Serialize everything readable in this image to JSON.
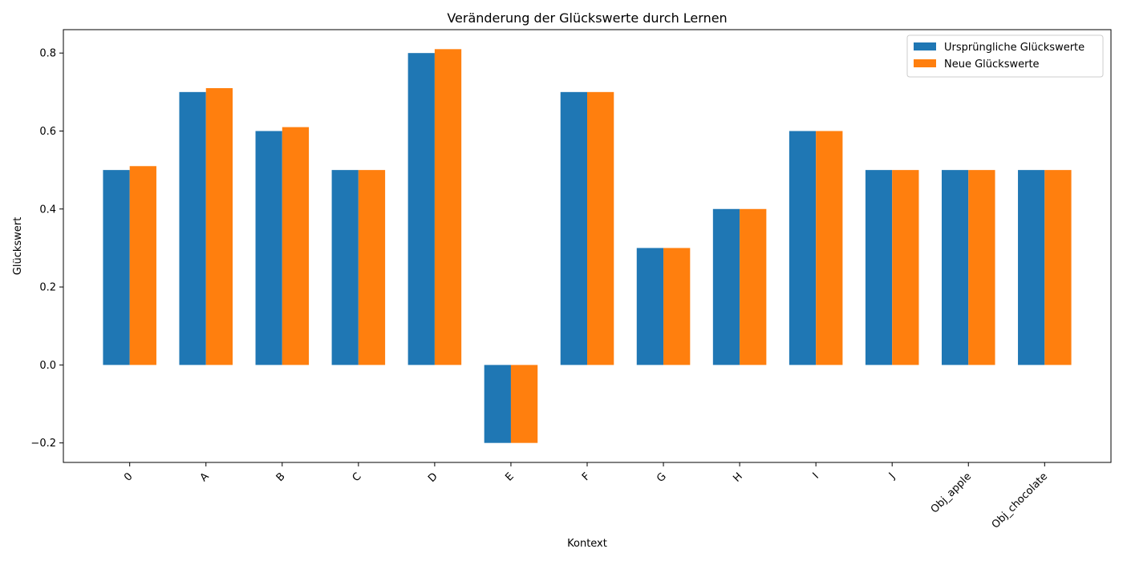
{
  "chart_data": {
    "type": "bar",
    "title": "Veränderung der Glückswerte durch Lernen",
    "xlabel": "Kontext",
    "ylabel": "Glückswert",
    "categories": [
      "0",
      "A",
      "B",
      "C",
      "D",
      "E",
      "F",
      "G",
      "H",
      "I",
      "J",
      "Obj_apple",
      "Obj_chocolate"
    ],
    "series": [
      {
        "name": "Ursprüngliche Glückswerte",
        "color": "#1f77b4",
        "values": [
          0.5,
          0.7,
          0.6,
          0.5,
          0.8,
          -0.2,
          0.7,
          0.3,
          0.4,
          0.6,
          0.5,
          0.5,
          0.5
        ]
      },
      {
        "name": "Neue Glückswerte",
        "color": "#ff7f0e",
        "values": [
          0.51,
          0.71,
          0.61,
          0.5,
          0.81,
          -0.2,
          0.7,
          0.3,
          0.4,
          0.6,
          0.5,
          0.5,
          0.5
        ]
      }
    ],
    "ylim": [
      -0.25,
      0.86
    ],
    "yticks": [
      "−0.2",
      "0.0",
      "0.2",
      "0.4",
      "0.6",
      "0.8"
    ],
    "ytick_values": [
      -0.2,
      0.0,
      0.2,
      0.4,
      0.6,
      0.8
    ],
    "grid": false,
    "legend_position": "top-right"
  }
}
